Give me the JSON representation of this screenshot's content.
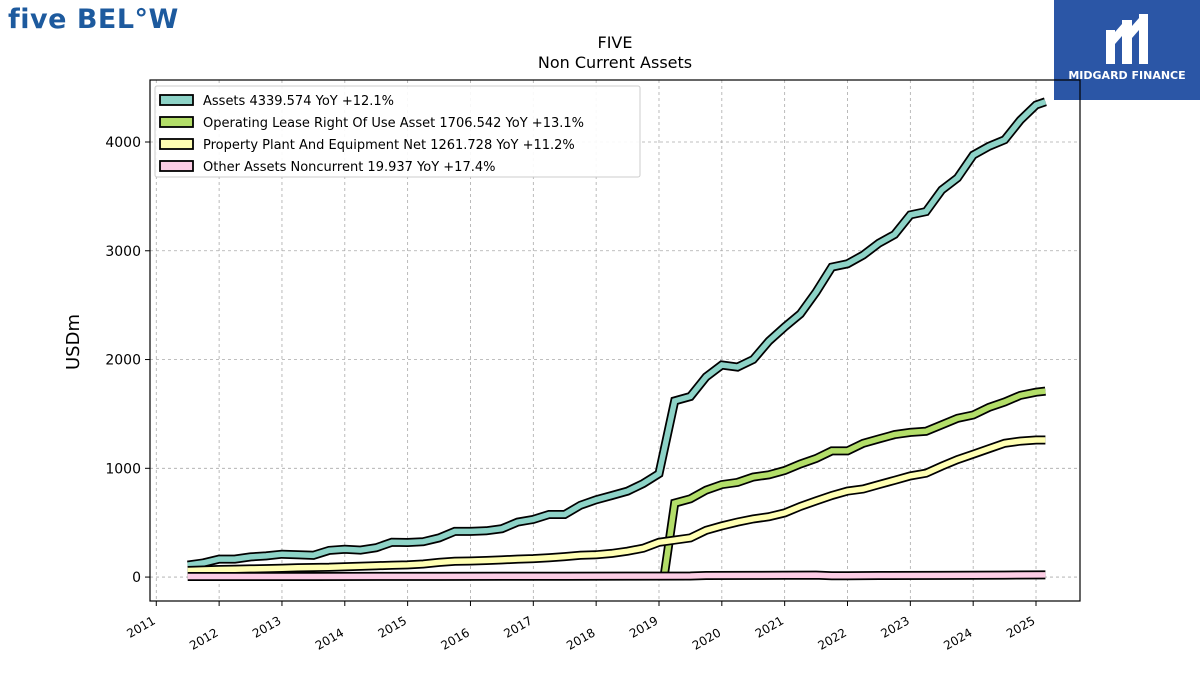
{
  "branding": {
    "company_logo_text": "five BEL°W",
    "partner_logo_text": "MIDGARD FINANCE",
    "partner_color": "#2b56a6",
    "company_color": "#1d5a9e"
  },
  "chart_data": {
    "type": "line",
    "title": "FIVE",
    "subtitle": "Non Current  Assets",
    "ylabel": "USDm",
    "xlabel": "",
    "xlim": [
      2010.9,
      2025.7
    ],
    "ylim": [
      -220,
      4570
    ],
    "yticks": [
      0,
      1000,
      2000,
      3000,
      4000
    ],
    "xticks": [
      "2011",
      "2012",
      "2013",
      "2014",
      "2015",
      "2016",
      "2017",
      "2018",
      "2019",
      "2020",
      "2021",
      "2022",
      "2023",
      "2024",
      "2025"
    ],
    "grid": true,
    "legend_position": "top-left",
    "series": [
      {
        "name": "Assets",
        "legend": "Assets  4339.574 YoY +12.1%",
        "color": "#8dd3c7",
        "x": [
          2011.5,
          2011.75,
          2012.0,
          2012.25,
          2012.5,
          2012.75,
          2013.0,
          2013.25,
          2013.5,
          2013.75,
          2014.0,
          2014.25,
          2014.5,
          2014.75,
          2015.0,
          2015.25,
          2015.5,
          2015.75,
          2016.0,
          2016.25,
          2016.5,
          2016.75,
          2017.0,
          2017.25,
          2017.5,
          2017.75,
          2018.0,
          2018.25,
          2018.5,
          2018.75,
          2019.0,
          2019.25,
          2019.5,
          2019.75,
          2020.0,
          2020.25,
          2020.5,
          2020.75,
          2021.0,
          2021.25,
          2021.5,
          2021.75,
          2022.0,
          2022.25,
          2022.5,
          2022.75,
          2023.0,
          2023.25,
          2023.5,
          2023.75,
          2024.0,
          2024.25,
          2024.5,
          2024.75,
          2025.0,
          2025.15
        ],
        "values": [
          110,
          130,
          165,
          165,
          185,
          195,
          210,
          205,
          200,
          245,
          255,
          248,
          270,
          320,
          318,
          325,
          360,
          420,
          420,
          425,
          445,
          505,
          530,
          575,
          575,
          660,
          710,
          750,
          790,
          860,
          950,
          1620,
          1660,
          1840,
          1950,
          1930,
          2000,
          2170,
          2300,
          2420,
          2620,
          2850,
          2880,
          2960,
          3070,
          3150,
          3330,
          3360,
          3560,
          3670,
          3880,
          3960,
          4020,
          4200,
          4340,
          4370
        ]
      },
      {
        "name": "Operating Lease Right Of Use Asset",
        "legend": "Operating Lease Right Of Use Asset  1706.542 YoY +13.1%",
        "color": "#b3de69",
        "x": [
          2019.08,
          2019.25,
          2019.5,
          2019.75,
          2020.0,
          2020.25,
          2020.5,
          2020.75,
          2021.0,
          2021.25,
          2021.5,
          2021.75,
          2022.0,
          2022.25,
          2022.5,
          2022.75,
          2023.0,
          2023.25,
          2023.5,
          2023.75,
          2024.0,
          2024.25,
          2024.5,
          2024.75,
          2025.0,
          2025.15
        ],
        "values": [
          0,
          680,
          720,
          800,
          850,
          870,
          920,
          940,
          980,
          1040,
          1090,
          1160,
          1160,
          1230,
          1270,
          1310,
          1330,
          1340,
          1400,
          1460,
          1490,
          1560,
          1610,
          1670,
          1700,
          1710
        ]
      },
      {
        "name": "Property Plant And Equipment Net",
        "legend": "Property Plant And Equipment Net  1261.728 YoY +11.2%",
        "color": "#ffffb3",
        "x": [
          2011.5,
          2011.75,
          2012.0,
          2012.25,
          2012.5,
          2012.75,
          2013.0,
          2013.25,
          2013.5,
          2013.75,
          2014.0,
          2014.25,
          2014.5,
          2014.75,
          2015.0,
          2015.25,
          2015.5,
          2015.75,
          2016.0,
          2016.25,
          2016.5,
          2016.75,
          2017.0,
          2017.25,
          2017.5,
          2017.75,
          2018.0,
          2018.25,
          2018.5,
          2018.75,
          2019.0,
          2019.25,
          2019.5,
          2019.75,
          2020.0,
          2020.25,
          2020.5,
          2020.75,
          2021.0,
          2021.25,
          2021.5,
          2021.75,
          2022.0,
          2022.25,
          2022.5,
          2022.75,
          2023.0,
          2023.25,
          2023.5,
          2023.75,
          2024.0,
          2024.25,
          2024.5,
          2024.75,
          2025.0,
          2025.15
        ],
        "values": [
          60,
          65,
          70,
          72,
          75,
          78,
          82,
          85,
          88,
          90,
          95,
          100,
          105,
          108,
          112,
          120,
          135,
          145,
          148,
          152,
          158,
          165,
          170,
          178,
          188,
          200,
          205,
          218,
          238,
          265,
          320,
          340,
          360,
          430,
          470,
          505,
          535,
          555,
          590,
          650,
          700,
          750,
          790,
          810,
          850,
          890,
          930,
          955,
          1020,
          1080,
          1130,
          1180,
          1230,
          1250,
          1260,
          1260
        ]
      },
      {
        "name": "Other Assets Noncurrent",
        "legend": "Other Assets Noncurrent  19.937 YoY +17.4%",
        "color": "#fccde5",
        "x": [
          2011.5,
          2012.5,
          2013.5,
          2014.5,
          2015.5,
          2016.5,
          2017.5,
          2018.5,
          2019.5,
          2019.75,
          2020.5,
          2021.0,
          2021.5,
          2021.75,
          2022.0,
          2022.5,
          2023.5,
          2024.5,
          2025.15
        ],
        "values": [
          5,
          5,
          5,
          6,
          6,
          7,
          8,
          9,
          10,
          14,
          15,
          17,
          18,
          12,
          12,
          14,
          15,
          18,
          20
        ]
      }
    ]
  }
}
